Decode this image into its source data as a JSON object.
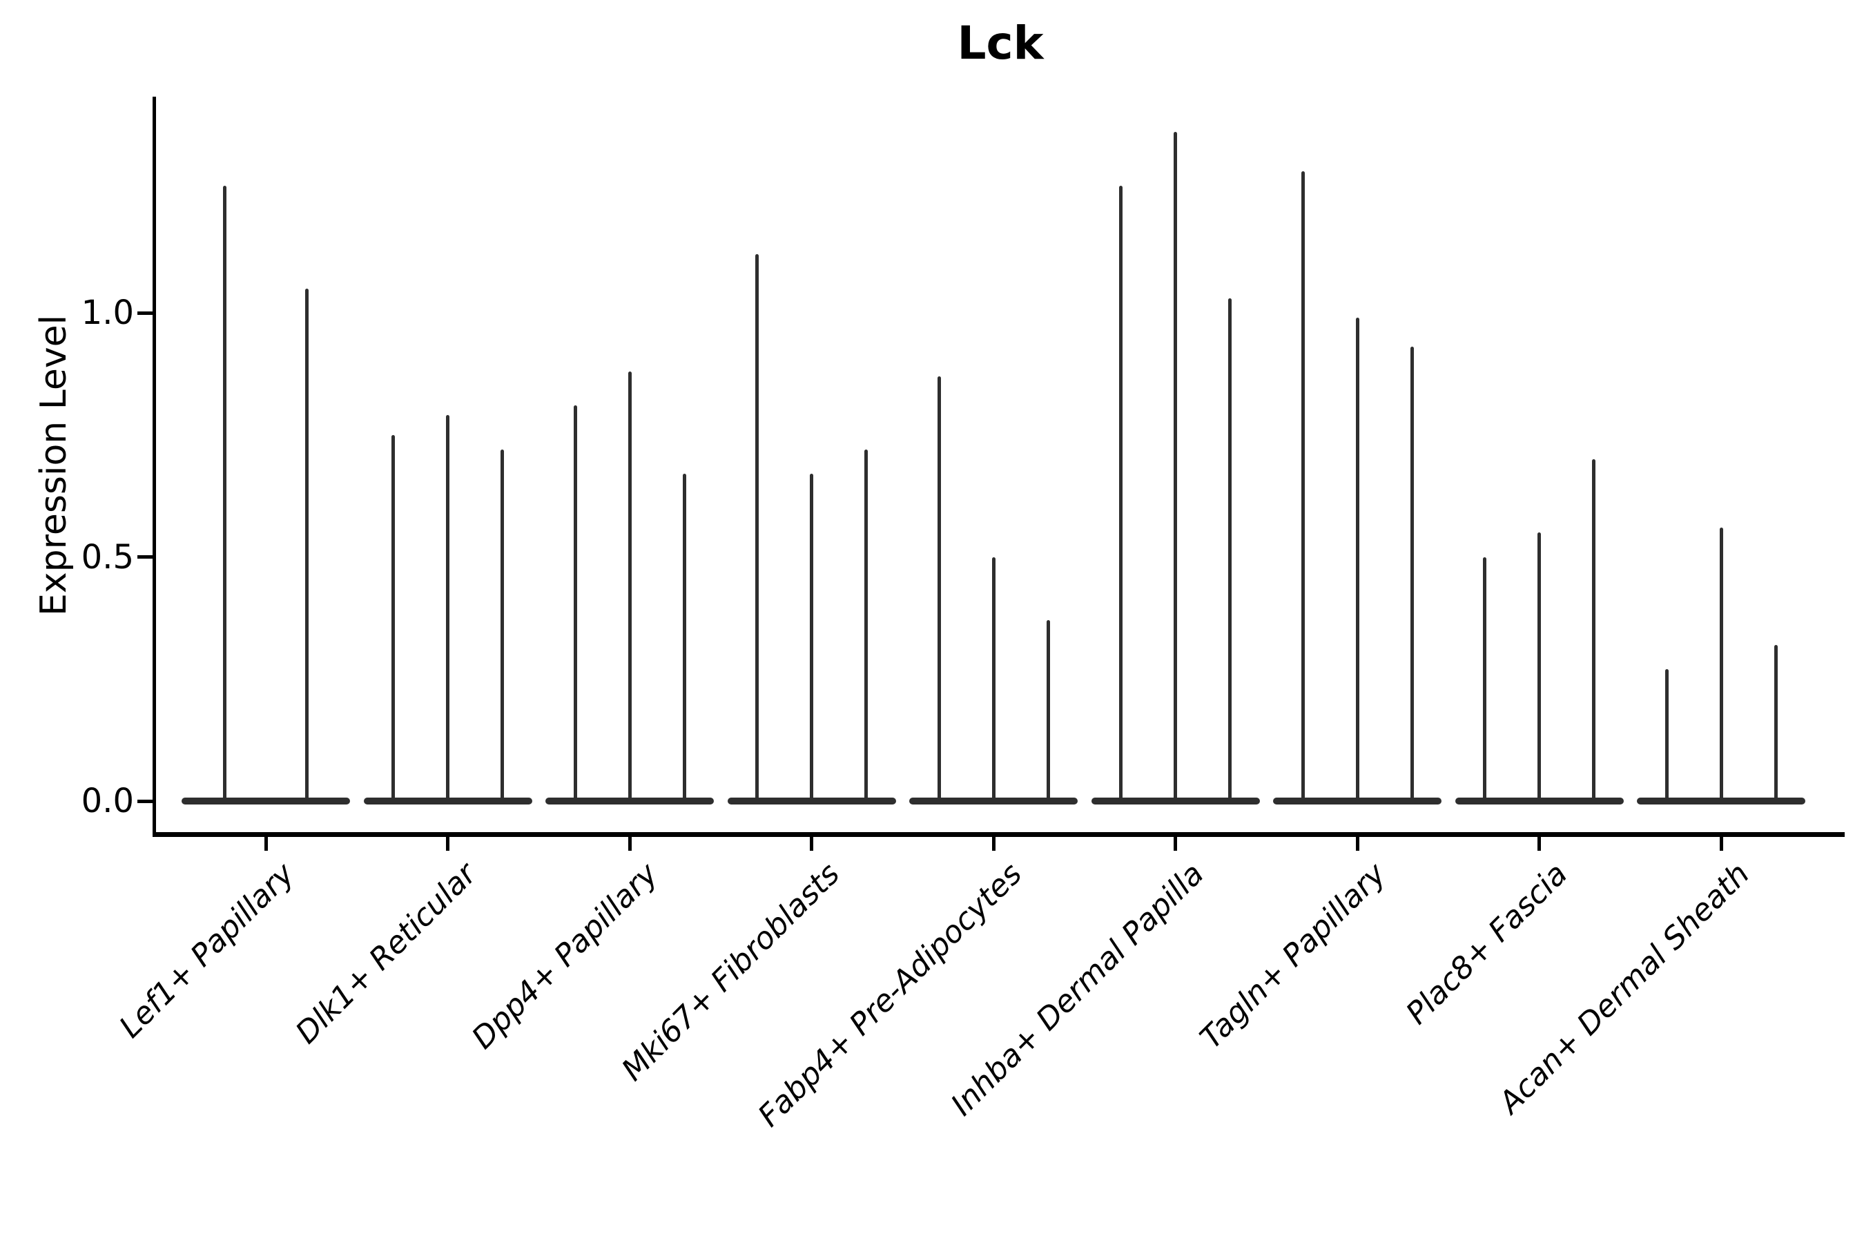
{
  "title": "Lck",
  "chart_data": {
    "type": "violin",
    "title": "Lck",
    "xlabel": "",
    "ylabel": "Expression Level",
    "ylim": [
      -0.07,
      1.44
    ],
    "grid": false,
    "legend": false,
    "yticks": [
      {
        "value": 0.0,
        "label": "0.0"
      },
      {
        "value": 0.5,
        "label": "0.5"
      },
      {
        "value": 1.0,
        "label": "1.0"
      }
    ],
    "note": "Single-cell violin plot; each group shows narrow spike violins of max expression per sample with a flat density base at 0",
    "groups": [
      {
        "label": "Lef1+ Papillary",
        "violin_max_values": [
          1.26,
          1.05
        ]
      },
      {
        "label": "Dlk1+ Reticular",
        "violin_max_values": [
          0.75,
          0.79,
          0.72
        ]
      },
      {
        "label": "Dpp4+ Papillary",
        "violin_max_values": [
          0.81,
          0.88,
          0.67
        ]
      },
      {
        "label": "Mki67+ Fibroblasts",
        "violin_max_values": [
          1.12,
          0.67,
          0.72
        ]
      },
      {
        "label": "Fabp4+ Pre-Adipocytes",
        "violin_max_values": [
          0.87,
          0.5,
          0.37
        ]
      },
      {
        "label": "Inhba+ Dermal Papilla",
        "violin_max_values": [
          1.26,
          1.37,
          1.03
        ]
      },
      {
        "label": "Tagln+ Papillary",
        "violin_max_values": [
          1.29,
          0.99,
          0.93
        ]
      },
      {
        "label": "Plac8+ Fascia",
        "violin_max_values": [
          0.5,
          0.55,
          0.7
        ]
      },
      {
        "label": "Acan+ Dermal Sheath",
        "violin_max_values": [
          0.27,
          0.56,
          0.32
        ]
      }
    ]
  },
  "colors": {
    "violin": "#2e2e2e",
    "axis": "#000000",
    "text": "#000000",
    "background": "#ffffff"
  }
}
